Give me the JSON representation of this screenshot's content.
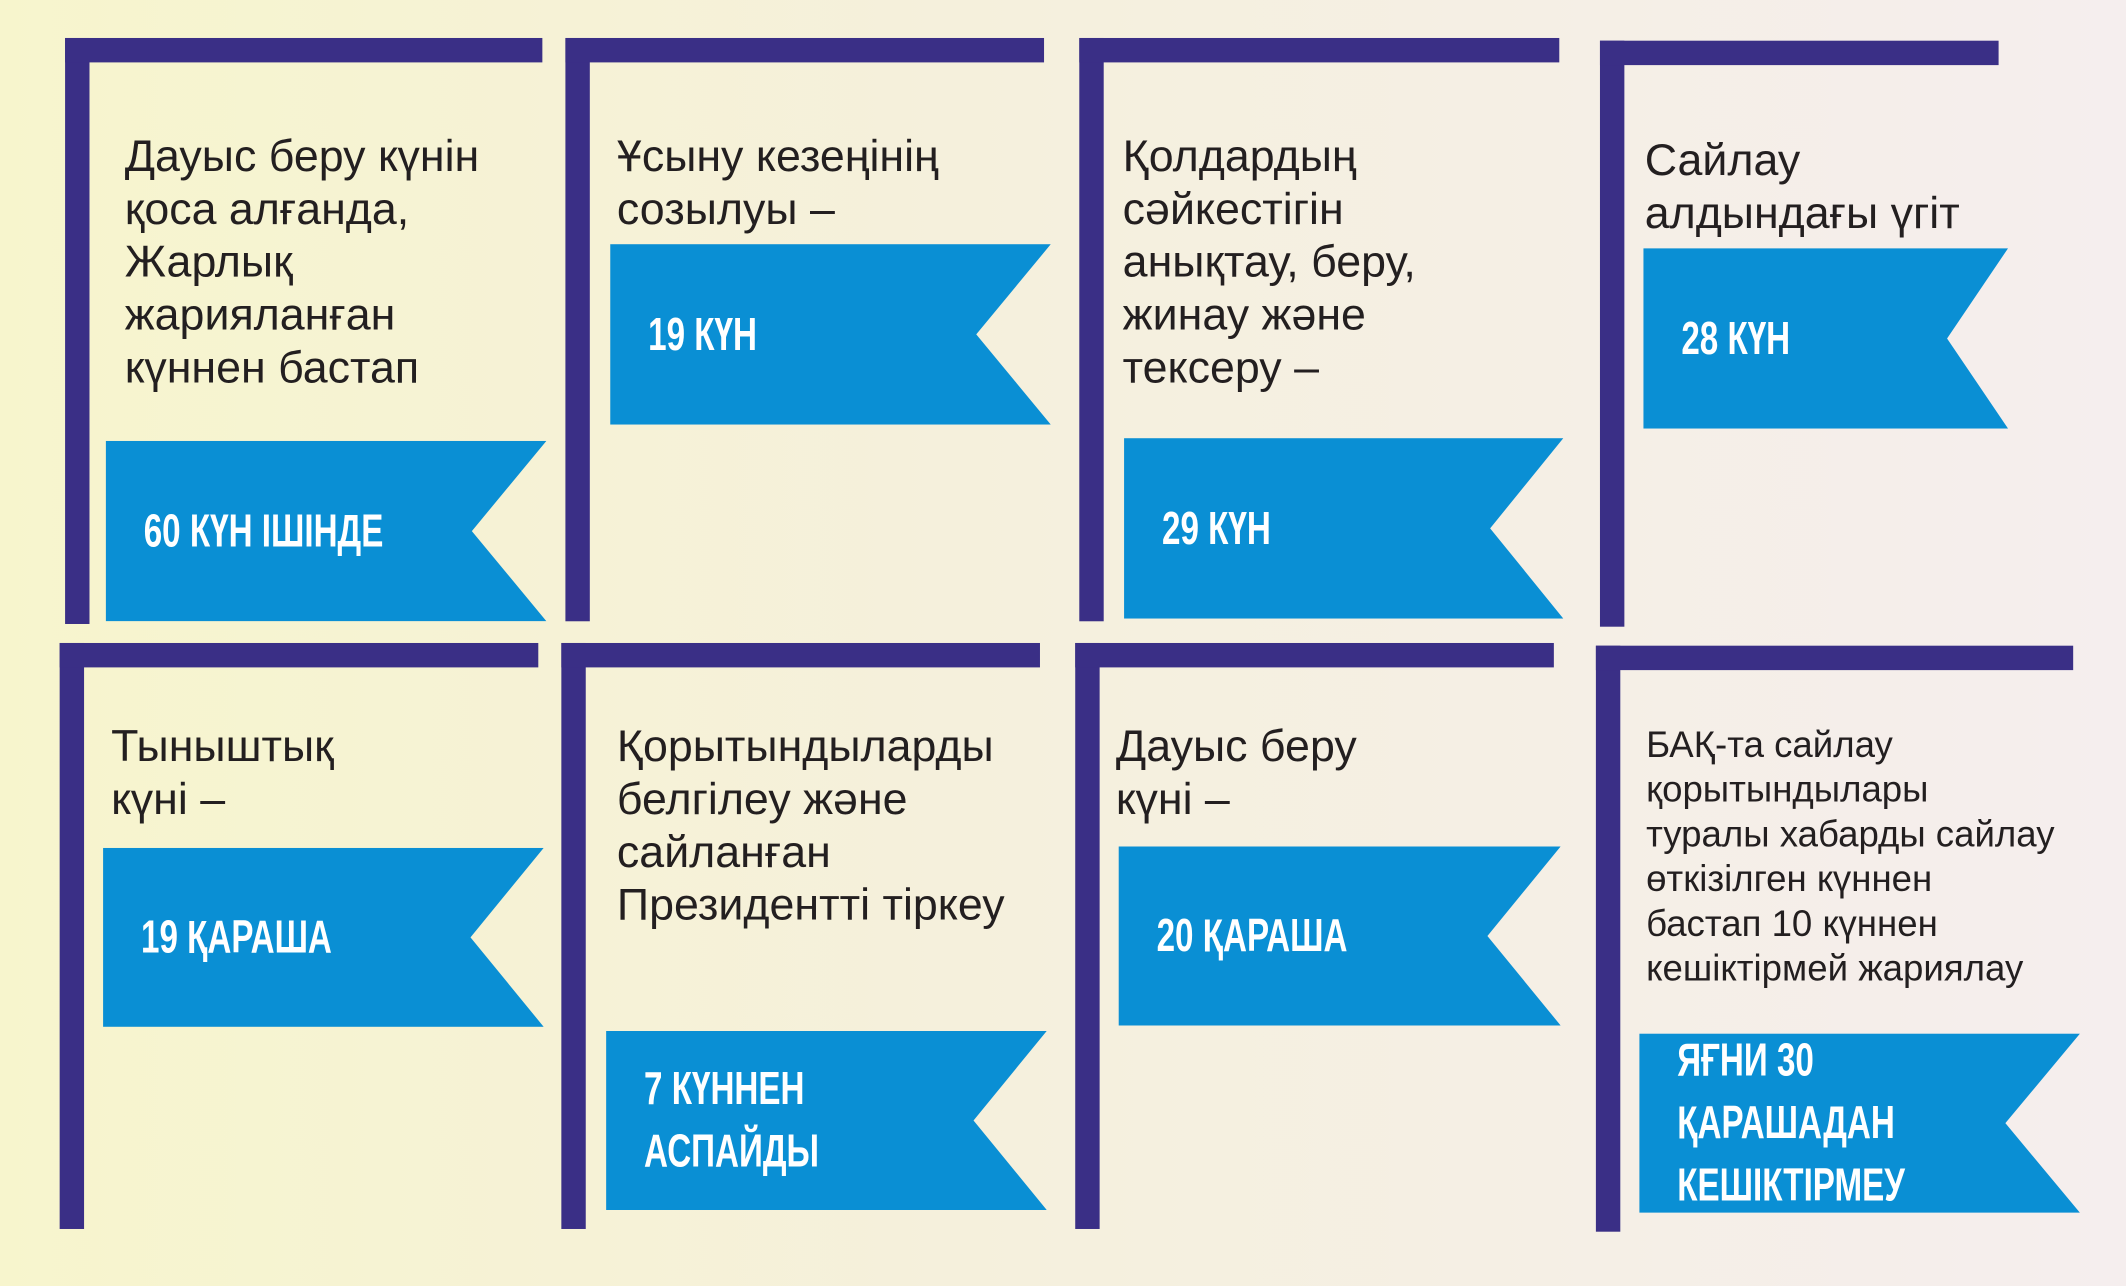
{
  "colors": {
    "bracket": "#3a2f86",
    "flag": "#0a8fd4",
    "text": "#231f20",
    "flag_text": "#ffffff"
  },
  "cards": [
    {
      "text": "Дауыс беру күнін\nқоса алғанда,\nЖарлық\nжарияланған\nкүннен бастап",
      "flag": "60 КҮН ІШІНДЕ"
    },
    {
      "text": "Ұсыну кезеңінің\nсозылуы –",
      "flag": "19 КҮН"
    },
    {
      "text": "Қолдардың\nсәйкестігін\nанықтау, беру,\nжинау және\nтексеру –",
      "flag": "29 КҮН"
    },
    {
      "text": "Сайлау\nалдындағы үгіт",
      "flag": "28 КҮН"
    },
    {
      "text": "Тыныштық\nкүні –",
      "flag": "19 ҚАРАША"
    },
    {
      "text": "Қорытындыларды\nбелгілеу және\nсайланған\nПрезидентті тіркеу",
      "flag": "7 КҮННЕН АСПАЙДЫ"
    },
    {
      "text": "Дауыс беру\nкүні –",
      "flag": "20 ҚАРАША"
    },
    {
      "text": "БАҚ-та сайлау\nқорытындылары\nтуралы хабарды сайлау\nөткізілген күннен\nбастап 10 күннен\nкешіктірмей жариялау",
      "flag": "ЯҒНИ 30 ҚАРАШАДАН\nКЕШІКТІРМЕУ"
    }
  ]
}
